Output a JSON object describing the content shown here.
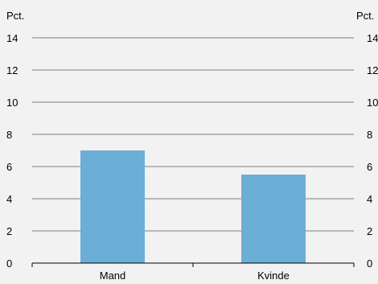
{
  "chart_data": {
    "type": "bar",
    "categories": [
      "Mand",
      "Kvinde"
    ],
    "values": [
      7.0,
      5.5
    ],
    "bar_color": "#6baed6",
    "ylabel_left": "Pct.",
    "ylabel_right": "Pct.",
    "ylim": [
      0,
      14
    ],
    "yticks": [
      0,
      2,
      4,
      6,
      8,
      10,
      12,
      14
    ],
    "grid": true,
    "dual_y_axis": true
  }
}
